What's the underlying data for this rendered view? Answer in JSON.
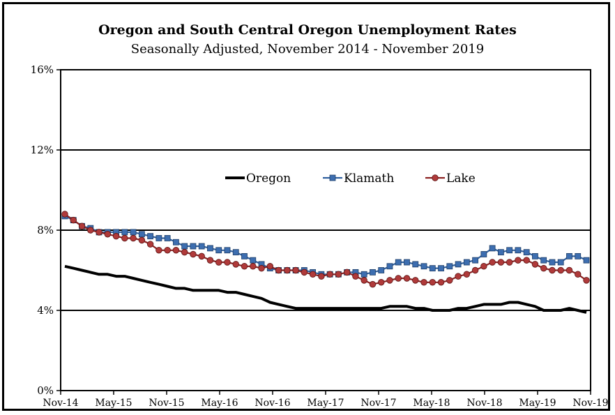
{
  "chart_data": {
    "type": "line",
    "title": "Oregon and South Central Oregon Unemployment Rates",
    "subtitle": "Seasonally Adjusted, November 2014 - November 2019",
    "y_ticks": [
      "0%",
      "4%",
      "8%",
      "12%",
      "16%"
    ],
    "ylim": [
      0,
      16
    ],
    "x_ticks": [
      "Nov-14",
      "May-15",
      "Nov-15",
      "May-16",
      "Nov-16",
      "May-17",
      "Nov-17",
      "May-18",
      "Nov-18",
      "May-19",
      "Nov-19"
    ],
    "x_start": "Nov-14",
    "x_end": "Nov-19",
    "grid": "horizontal",
    "legend_position": "center",
    "series": [
      {
        "name": "Oregon",
        "color": "#000000",
        "marker": "none",
        "values": [
          6.2,
          6.1,
          6.0,
          5.9,
          5.8,
          5.8,
          5.7,
          5.7,
          5.6,
          5.5,
          5.4,
          5.3,
          5.2,
          5.1,
          5.1,
          5.0,
          5.0,
          5.0,
          5.0,
          4.9,
          4.9,
          4.8,
          4.7,
          4.6,
          4.4,
          4.3,
          4.2,
          4.1,
          4.1,
          4.1,
          4.1,
          4.1,
          4.1,
          4.1,
          4.1,
          4.1,
          4.1,
          4.1,
          4.2,
          4.2,
          4.2,
          4.1,
          4.1,
          4.0,
          4.0,
          4.0,
          4.1,
          4.1,
          4.2,
          4.3,
          4.3,
          4.3,
          4.4,
          4.4,
          4.3,
          4.2,
          4.0,
          4.0,
          4.0,
          4.1,
          4.0,
          3.9
        ]
      },
      {
        "name": "Klamath",
        "color": "#2e5f9e",
        "marker": "square",
        "values": [
          8.7,
          8.5,
          8.2,
          8.1,
          7.9,
          7.9,
          7.9,
          7.9,
          7.9,
          7.8,
          7.7,
          7.6,
          7.6,
          7.4,
          7.2,
          7.2,
          7.2,
          7.1,
          7.0,
          7.0,
          6.9,
          6.7,
          6.5,
          6.3,
          6.1,
          6.0,
          6.0,
          6.0,
          6.0,
          5.9,
          5.8,
          5.8,
          5.8,
          5.9,
          5.9,
          5.8,
          5.9,
          6.0,
          6.2,
          6.4,
          6.4,
          6.3,
          6.2,
          6.1,
          6.1,
          6.2,
          6.3,
          6.4,
          6.5,
          6.8,
          7.1,
          6.9,
          7.0,
          7.0,
          6.9,
          6.7,
          6.5,
          6.4,
          6.4,
          6.7,
          6.7,
          6.5
        ]
      },
      {
        "name": "Lake",
        "color": "#8b2020",
        "marker": "circle",
        "values": [
          8.8,
          8.5,
          8.2,
          8.0,
          7.9,
          7.8,
          7.7,
          7.6,
          7.6,
          7.5,
          7.3,
          7.0,
          7.0,
          7.0,
          6.9,
          6.8,
          6.7,
          6.5,
          6.4,
          6.4,
          6.3,
          6.2,
          6.2,
          6.1,
          6.2,
          6.0,
          6.0,
          6.0,
          5.9,
          5.8,
          5.7,
          5.8,
          5.8,
          5.9,
          5.7,
          5.5,
          5.3,
          5.4,
          5.5,
          5.6,
          5.6,
          5.5,
          5.4,
          5.4,
          5.4,
          5.5,
          5.7,
          5.8,
          6.0,
          6.2,
          6.4,
          6.4,
          6.4,
          6.5,
          6.5,
          6.3,
          6.1,
          6.0,
          6.0,
          6.0,
          5.8,
          5.5
        ]
      }
    ]
  }
}
